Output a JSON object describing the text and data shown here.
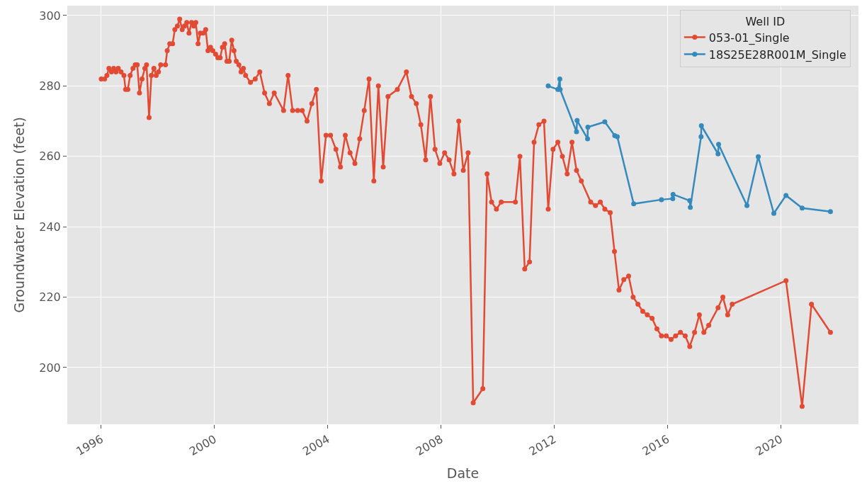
{
  "chart_data": {
    "type": "line",
    "xlabel": "Date",
    "ylabel": "Groundwater Elevation (feet)",
    "legend_title": "Well ID",
    "xlim": [
      1994.8,
      2022.75
    ],
    "ylim": [
      183.9,
      302.8
    ],
    "xticks": [
      1996,
      2000,
      2004,
      2008,
      2012,
      2016,
      2020
    ],
    "yticks": [
      200,
      220,
      240,
      260,
      280,
      300
    ],
    "grid": true,
    "legend": "top right",
    "marker": "circle",
    "line_style": "solid",
    "series": [
      {
        "name": "053-01_Single",
        "color": "#e24a33",
        "x": [
          1996.0,
          1996.12,
          1996.2,
          1996.27,
          1996.36,
          1996.44,
          1996.52,
          1996.6,
          1996.7,
          1996.8,
          1996.86,
          1996.94,
          1997.02,
          1997.12,
          1997.2,
          1997.27,
          1997.35,
          1997.44,
          1997.54,
          1997.6,
          1997.69,
          1997.77,
          1997.86,
          1997.94,
          1998.02,
          1998.1,
          1998.27,
          1998.33,
          1998.42,
          1998.52,
          1998.6,
          1998.69,
          1998.77,
          1998.86,
          1998.94,
          1999.02,
          1999.1,
          1999.19,
          1999.27,
          1999.34,
          1999.42,
          1999.5,
          1999.6,
          1999.69,
          1999.77,
          1999.86,
          1999.94,
          2000.04,
          2000.12,
          2000.2,
          2000.28,
          2000.36,
          2000.44,
          2000.52,
          2000.61,
          2000.69,
          2000.77,
          2000.86,
          2000.94,
          2001.02,
          2001.1,
          2001.27,
          2001.44,
          2001.6,
          2001.77,
          2001.94,
          2002.11,
          2002.44,
          2002.6,
          2002.76,
          2002.94,
          2003.1,
          2003.27,
          2003.44,
          2003.6,
          2003.77,
          2003.94,
          2004.1,
          2004.29,
          2004.45,
          2004.62,
          2004.79,
          2004.96,
          2005.13,
          2005.29,
          2005.46,
          2005.63,
          2005.79,
          2005.96,
          2006.13,
          2006.46,
          2006.78,
          2006.96,
          2007.13,
          2007.29,
          2007.46,
          2007.63,
          2007.79,
          2007.96,
          2008.13,
          2008.29,
          2008.46,
          2008.63,
          2008.79,
          2008.96,
          2009.14,
          2009.48,
          2009.63,
          2009.79,
          2009.96,
          2010.13,
          2010.63,
          2010.79,
          2010.96,
          2011.13,
          2011.29,
          2011.46,
          2011.64,
          2011.79,
          2011.96,
          2012.13,
          2012.29,
          2012.46,
          2012.63,
          2012.79,
          2012.96,
          2013.29,
          2013.46,
          2013.63,
          2013.79,
          2013.98,
          2014.13,
          2014.29,
          2014.46,
          2014.63,
          2014.79,
          2014.96,
          2015.13,
          2015.29,
          2015.46,
          2015.63,
          2015.79,
          2015.96,
          2016.13,
          2016.29,
          2016.46,
          2016.63,
          2016.79,
          2016.96,
          2017.13,
          2017.29,
          2017.46,
          2017.79,
          2017.96,
          2018.13,
          2018.29,
          2020.19,
          2020.76,
          2021.09,
          2021.76
        ],
        "values": [
          282,
          282,
          283,
          285,
          284,
          285,
          284,
          285,
          284,
          283,
          279,
          279,
          283,
          285,
          286,
          286,
          278,
          282,
          285,
          286,
          271,
          283,
          285,
          283,
          284,
          286,
          286,
          290,
          292,
          292,
          296,
          297,
          299,
          296,
          297,
          298,
          295,
          298,
          297,
          298,
          292,
          295,
          295,
          296,
          290,
          291,
          290,
          289,
          288,
          288,
          291,
          292,
          287,
          287,
          293,
          290,
          287,
          286,
          284,
          285,
          283,
          281,
          282,
          284,
          278,
          275,
          278,
          273,
          283,
          273,
          273,
          273,
          270,
          275,
          279,
          253,
          266,
          266,
          262,
          257,
          266,
          261,
          258,
          265,
          273,
          282,
          253,
          280,
          257,
          277,
          279,
          284,
          277,
          275,
          269,
          259,
          277,
          262,
          258,
          261,
          259,
          255,
          270,
          256,
          261,
          190,
          194,
          255,
          247,
          245,
          247,
          247,
          260,
          228,
          230,
          264,
          269,
          270,
          245,
          262,
          264,
          260,
          255,
          264,
          256,
          253,
          247,
          246,
          247,
          245,
          244,
          233,
          222,
          225,
          226,
          220,
          218,
          216,
          215,
          214,
          211,
          209,
          209,
          208,
          209,
          210,
          209,
          206,
          210,
          215,
          210,
          212,
          217,
          220,
          215,
          218,
          224.7,
          189,
          218,
          210
        ]
      },
      {
        "name": "18S25E28R001M_Single",
        "color": "#348abd",
        "x": [
          2011.79,
          2012.13,
          2012.2,
          2012.21,
          2012.79,
          2012.81,
          2013.18,
          2013.19,
          2013.79,
          2014.14,
          2014.23,
          2014.81,
          2015.79,
          2016.19,
          2016.2,
          2016.79,
          2016.81,
          2017.19,
          2017.2,
          2017.79,
          2017.81,
          2018.81,
          2019.21,
          2019.76,
          2020.19,
          2020.76,
          2021.76
        ],
        "values": [
          280,
          279,
          282,
          279,
          267,
          270.2,
          265,
          268.3,
          269.8,
          265.9,
          265.6,
          246.5,
          247.7,
          248,
          249.2,
          247.4,
          245.5,
          265.6,
          268.7,
          260.7,
          263.4,
          246,
          259.9,
          243.8,
          248.9,
          245.3,
          244.3
        ]
      }
    ]
  }
}
